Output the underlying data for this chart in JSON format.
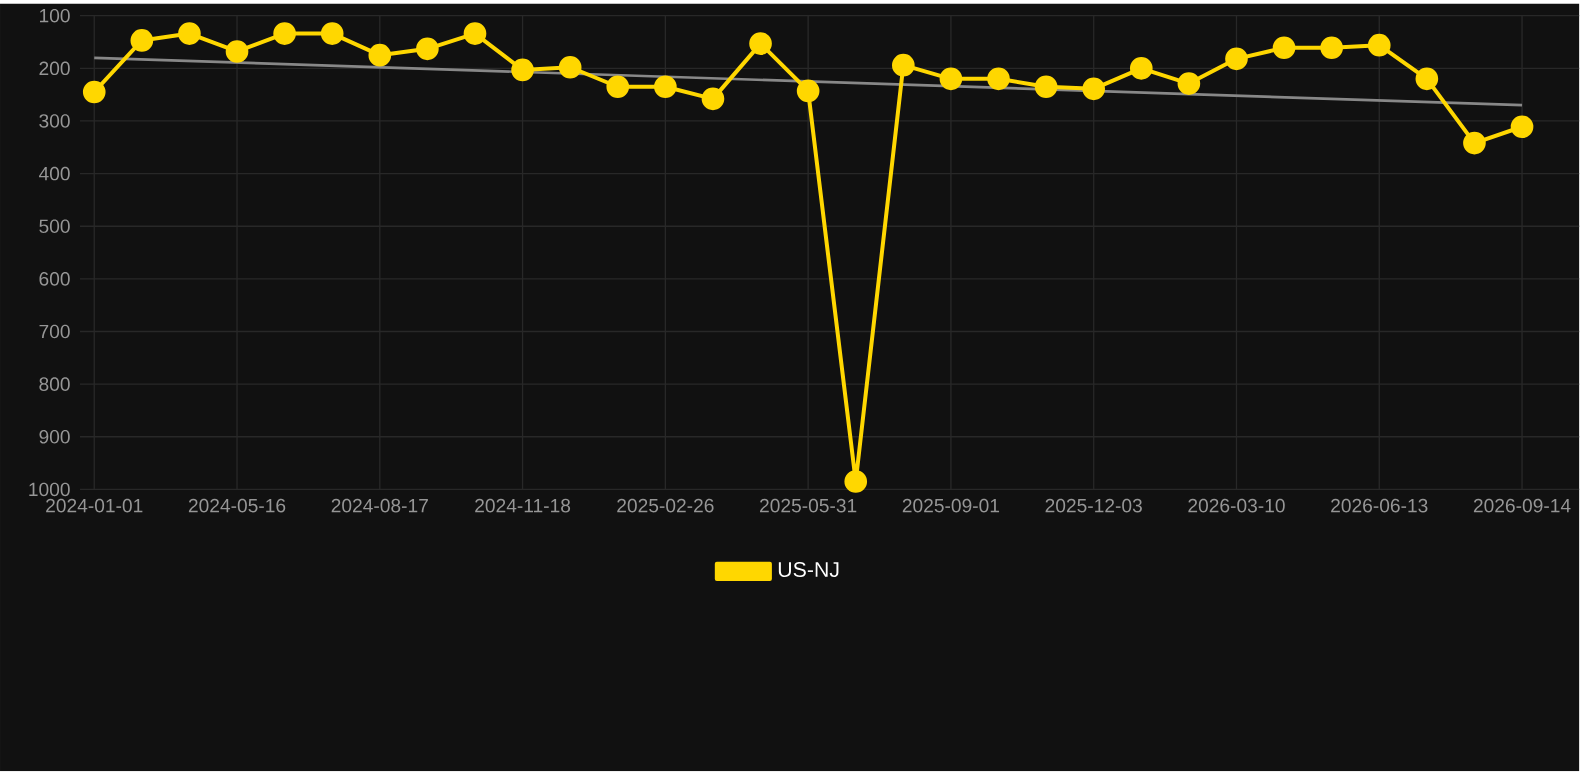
{
  "chart_data": {
    "type": "line",
    "categories": [
      "2024-01-01",
      null,
      null,
      "2024-05-16",
      null,
      null,
      "2024-08-17",
      null,
      null,
      "2024-11-18",
      null,
      null,
      "2025-02-26",
      null,
      null,
      "2025-05-31",
      null,
      null,
      "2025-09-01",
      null,
      null,
      "2025-12-03",
      null,
      null,
      "2026-03-10",
      null,
      null,
      "2026-06-13",
      null,
      null,
      "2026-09-14"
    ],
    "series": [
      {
        "name": "US-NJ",
        "color": "#ffd700",
        "marker": "circle",
        "line_style": "solid",
        "values": [
          245,
          147,
          134,
          168,
          134,
          134,
          175,
          163,
          134,
          203,
          198,
          235,
          235,
          258,
          153,
          243,
          985,
          194,
          220,
          220,
          235,
          239,
          200,
          229,
          182,
          161,
          161,
          156,
          220,
          342,
          311
        ]
      },
      {
        "type": "line",
        "color": "#888888",
        "marker": "none",
        "values": [
          180,
          null,
          null,
          null,
          null,
          null,
          null,
          null,
          null,
          null,
          null,
          null,
          null,
          null,
          null,
          null,
          null,
          null,
          null,
          null,
          null,
          null,
          null,
          null,
          null,
          null,
          null,
          null,
          null,
          null,
          270
        ]
      }
    ],
    "ylim": [
      1000,
      100
    ],
    "yticks": [
      100,
      200,
      300,
      400,
      500,
      600,
      700,
      800,
      900,
      1000
    ],
    "grid": true,
    "legend": "bottom"
  }
}
